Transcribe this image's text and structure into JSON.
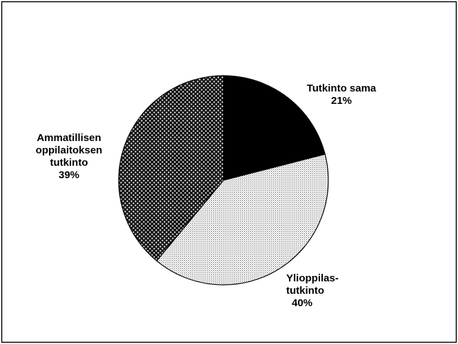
{
  "chart_data": {
    "type": "pie",
    "categories": [
      "Tutkinto sama",
      "Ylioppilas-\ntutkinto",
      "Ammatillisen\noppilaitoksen\ntutkinto"
    ],
    "values": [
      21,
      40,
      39
    ],
    "value_labels": [
      "21%",
      "40%",
      "39%"
    ],
    "colors": [
      "#000000",
      "#b0b0b0",
      "#222222"
    ]
  }
}
